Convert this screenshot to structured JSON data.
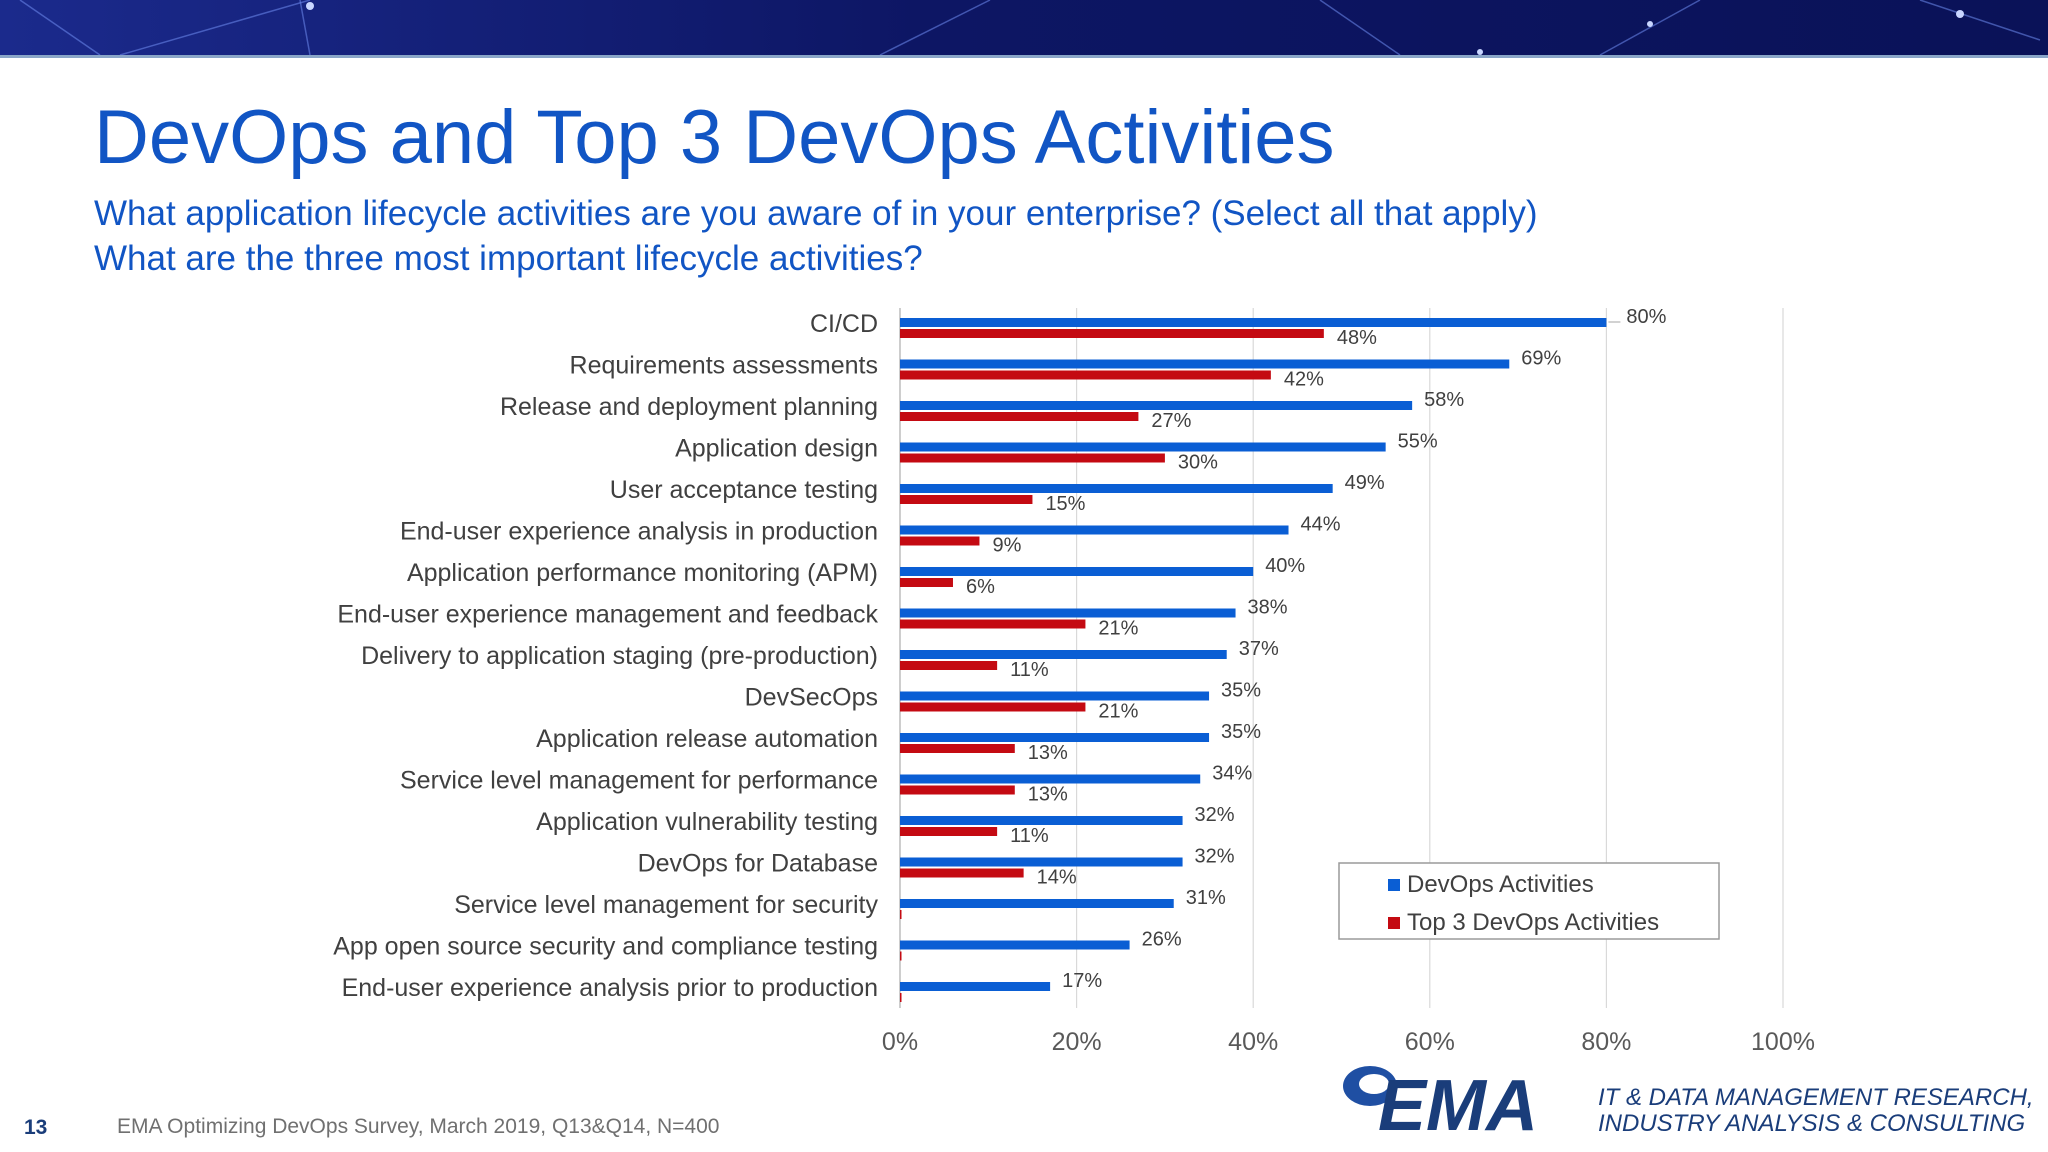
{
  "slide": {
    "title": "DevOps and Top 3 DevOps Activities",
    "subtitle_lines": [
      "What application lifecycle activities are you aware of in your enterprise?  (Select all that apply)",
      "What are the three most important lifecycle activities?"
    ],
    "page_number": "13",
    "source": "EMA  Optimizing DevOps Survey, March 2019, Q13&Q14, N=400"
  },
  "branding": {
    "logo_text": "EMA",
    "tagline_lines": [
      "IT & DATA MANAGEMENT RESEARCH,",
      "INDUSTRY ANALYSIS & CONSULTING"
    ]
  },
  "colors": {
    "title_blue": "#1155c4",
    "series_blue": "#0a5ed4",
    "series_red": "#c40a12",
    "banner_navy": "#0e1a6b"
  },
  "chart_data": {
    "type": "bar",
    "orientation": "horizontal",
    "categories": [
      "CI/CD",
      "Requirements assessments",
      "Release and deployment planning",
      "Application design",
      "User acceptance testing",
      "End-user experience analysis in production",
      "Application performance monitoring (APM)",
      "End-user experience management and feedback",
      "Delivery to application staging (pre-production)",
      "DevSecOps",
      "Application release automation",
      "Service level management for performance",
      "Application vulnerability testing",
      "DevOps for Database",
      "Service level management for security",
      "App open source security and compliance testing",
      "End-user experience analysis prior to production"
    ],
    "series": [
      {
        "name": "DevOps Activities",
        "color": "#0a5ed4",
        "values": [
          80,
          69,
          58,
          55,
          49,
          44,
          40,
          38,
          37,
          35,
          35,
          34,
          32,
          32,
          31,
          26,
          17
        ],
        "labels": [
          "80%",
          "69%",
          "58%",
          "55%",
          "49%",
          "44%",
          "40%",
          "38%",
          "37%",
          "35%",
          "35%",
          "34%",
          "32%",
          "32%",
          "31%",
          "26%",
          "17%"
        ]
      },
      {
        "name": "Top 3 DevOps Activities",
        "color": "#c40a12",
        "values": [
          48,
          42,
          27,
          30,
          15,
          9,
          6,
          21,
          11,
          21,
          13,
          13,
          11,
          14,
          0,
          0,
          0
        ],
        "labels": [
          "48%",
          "42%",
          "27%",
          "30%",
          "15%",
          "9%",
          "6%",
          "21%",
          "11%",
          "21%",
          "13%",
          "13%",
          "11%",
          "14%",
          "",
          "",
          ""
        ]
      }
    ],
    "x_ticks": [
      "0%",
      "20%",
      "40%",
      "60%",
      "80%",
      "100%"
    ],
    "xlim": [
      0,
      100
    ],
    "grid": "vertical",
    "legend_position": "bottom-right"
  }
}
